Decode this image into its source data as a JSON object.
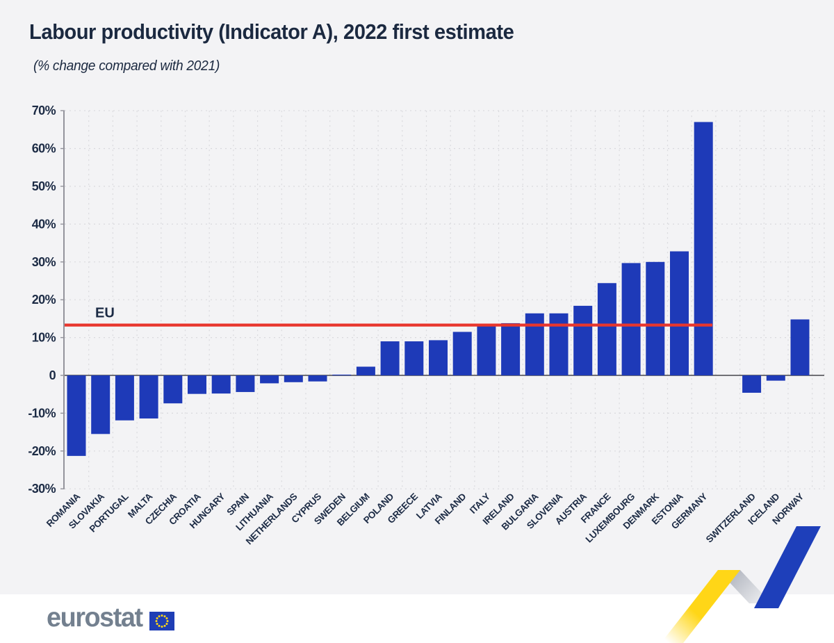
{
  "title": "Labour productivity (Indicator A), 2022 first estimate",
  "subtitle": "(% change compared with 2021)",
  "footer": {
    "logo_text": "eurostat"
  },
  "colors": {
    "background": "#f3f3f5",
    "footer_background": "#ffffff",
    "bar": "#1e3ab8",
    "reference_line": "#e8362d",
    "text": "#1b2940",
    "logo_gray": "#73808f",
    "flag_blue": "#1f3eb5",
    "star_yellow": "#ffd617",
    "ribbon_yellow": "#ffd617",
    "ribbon_silver": "#c3c7d0",
    "ribbon_blue": "#1e3fba"
  },
  "chart_data": {
    "type": "bar",
    "title": "Labour productivity (Indicator A), 2022 first estimate",
    "subtitle": "(% change compared with 2021)",
    "ylabel": "% change compared with 2021",
    "ylim": [
      -30,
      70
    ],
    "ytick_step": 10,
    "ytick_labels": [
      "70%",
      "60%",
      "50%",
      "40%",
      "30%",
      "20%",
      "10%",
      "0",
      "-10%",
      "-20%",
      "-30%"
    ],
    "grid": true,
    "legend_position": "none",
    "bar_color": "#1e3ab8",
    "reference_line": {
      "label": "EU",
      "value": 13.3,
      "color": "#e8362d"
    },
    "bars": [
      {
        "label": "ROMANIA",
        "value": -21.3,
        "group": "EU"
      },
      {
        "label": "SLOVAKIA",
        "value": -15.5,
        "group": "EU"
      },
      {
        "label": "PORTUGAL",
        "value": -11.9,
        "group": "EU"
      },
      {
        "label": "MALTA",
        "value": -11.4,
        "group": "EU"
      },
      {
        "label": "CZECHIA",
        "value": -7.4,
        "group": "EU"
      },
      {
        "label": "CROATIA",
        "value": -4.9,
        "group": "EU"
      },
      {
        "label": "HUNGARY",
        "value": -4.8,
        "group": "EU"
      },
      {
        "label": "SPAIN",
        "value": -4.4,
        "group": "EU"
      },
      {
        "label": "LITHUANIA",
        "value": -2.1,
        "group": "EU"
      },
      {
        "label": "NETHERLANDS",
        "value": -1.8,
        "group": "EU"
      },
      {
        "label": "CYPRUS",
        "value": -1.6,
        "group": "EU"
      },
      {
        "label": "SWEDEN",
        "value": 0.2,
        "group": "EU"
      },
      {
        "label": "BELGIUM",
        "value": 2.3,
        "group": "EU"
      },
      {
        "label": "POLAND",
        "value": 9.0,
        "group": "EU"
      },
      {
        "label": "GREECE",
        "value": 9.0,
        "group": "EU"
      },
      {
        "label": "LATVIA",
        "value": 9.3,
        "group": "EU"
      },
      {
        "label": "FINLAND",
        "value": 11.5,
        "group": "EU"
      },
      {
        "label": "ITALY",
        "value": 13.5,
        "group": "EU"
      },
      {
        "label": "IRELAND",
        "value": 13.8,
        "group": "EU"
      },
      {
        "label": "BULGARIA",
        "value": 16.4,
        "group": "EU"
      },
      {
        "label": "SLOVENIA",
        "value": 16.4,
        "group": "EU"
      },
      {
        "label": "AUSTRIA",
        "value": 18.4,
        "group": "EU"
      },
      {
        "label": "FRANCE",
        "value": 24.4,
        "group": "EU"
      },
      {
        "label": "LUXEMBOURG",
        "value": 29.7,
        "group": "EU"
      },
      {
        "label": "DENMARK",
        "value": 30.0,
        "group": "EU"
      },
      {
        "label": "ESTONIA",
        "value": 32.8,
        "group": "EU"
      },
      {
        "label": "GERMANY",
        "value": 67.0,
        "group": "EU"
      },
      {
        "label": "SWITZERLAND",
        "value": -4.6,
        "group": "EFTA"
      },
      {
        "label": "ICELAND",
        "value": -1.4,
        "group": "EFTA"
      },
      {
        "label": "NORWAY",
        "value": 14.8,
        "group": "EFTA"
      }
    ]
  }
}
